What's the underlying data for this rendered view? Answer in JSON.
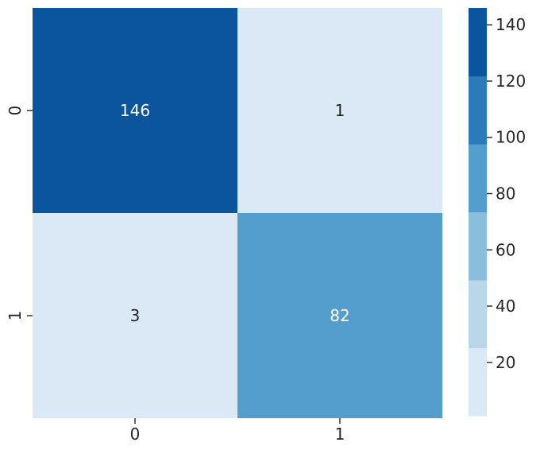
{
  "chart_data": {
    "type": "heatmap",
    "title": "",
    "xlabel": "",
    "ylabel": "",
    "x_categories": [
      "0",
      "1"
    ],
    "y_categories": [
      "0",
      "1"
    ],
    "values": [
      [
        146,
        1
      ],
      [
        3,
        82
      ]
    ],
    "annotations": [
      [
        "146",
        "1"
      ],
      [
        "3",
        "82"
      ]
    ],
    "colorbar": {
      "range": [
        1,
        146
      ],
      "ticks": [
        {
          "value": 20,
          "label": "20"
        },
        {
          "value": 40,
          "label": "40"
        },
        {
          "value": 60,
          "label": "60"
        },
        {
          "value": 80,
          "label": "80"
        },
        {
          "value": 100,
          "label": "100"
        },
        {
          "value": 120,
          "label": "120"
        },
        {
          "value": 140,
          "label": "140"
        }
      ],
      "bands": [
        {
          "from": 1,
          "to": 25.17,
          "color": "#dbe9f6"
        },
        {
          "from": 25.17,
          "to": 49.33,
          "color": "#bad6eb"
        },
        {
          "from": 49.33,
          "to": 73.5,
          "color": "#89bedc"
        },
        {
          "from": 73.5,
          "to": 97.67,
          "color": "#539ecd"
        },
        {
          "from": 97.67,
          "to": 121.83,
          "color": "#2b7bba"
        },
        {
          "from": 121.83,
          "to": 146,
          "color": "#0b559f"
        }
      ]
    },
    "dark_text_color": "#262626",
    "light_text_color": "#ffffff",
    "grid": false,
    "legend": "colorbar-right"
  }
}
